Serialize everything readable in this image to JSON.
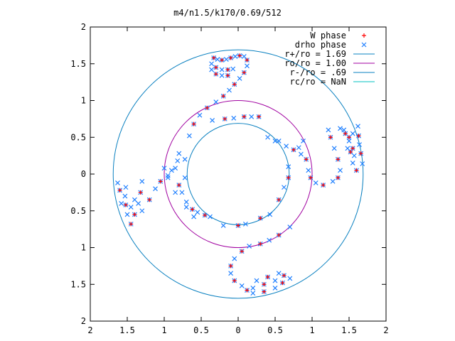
{
  "chart_data": {
    "type": "scatter",
    "title": "m4/n1.5/k170/0.69/512",
    "xlabel": "",
    "ylabel": "",
    "xlim": [
      -2,
      2
    ],
    "ylim": [
      -2,
      2
    ],
    "x_ticks": [
      {
        "value": -2,
        "label": "2"
      },
      {
        "value": -1.5,
        "label": "1.5"
      },
      {
        "value": -1,
        "label": "1"
      },
      {
        "value": -0.5,
        "label": "0.5"
      },
      {
        "value": 0,
        "label": "0"
      },
      {
        "value": 0.5,
        "label": "0.5"
      },
      {
        "value": 1,
        "label": "1"
      },
      {
        "value": 1.5,
        "label": "1.5"
      },
      {
        "value": 2,
        "label": "2"
      }
    ],
    "y_ticks": [
      {
        "value": 2,
        "label": "2"
      },
      {
        "value": 1.5,
        "label": "1.5"
      },
      {
        "value": 1,
        "label": "1"
      },
      {
        "value": 0.5,
        "label": "0.5"
      },
      {
        "value": 0,
        "label": "0"
      },
      {
        "value": -0.5,
        "label": "0.5"
      },
      {
        "value": -1,
        "label": "1"
      },
      {
        "value": -1.5,
        "label": "1.5"
      },
      {
        "value": -2,
        "label": "2"
      }
    ],
    "grid": false,
    "legend_position": "top-right",
    "legend": [
      {
        "label": "W phase",
        "kind": "points",
        "marker": "plus",
        "color": "#ff0000"
      },
      {
        "label": "drho phase",
        "kind": "points",
        "marker": "cross",
        "color": "#2080ff"
      },
      {
        "label": "r+/ro = 1.69",
        "kind": "line",
        "color": "#0a80c0"
      },
      {
        "label": "ro/ro = 1.00",
        "kind": "line",
        "color": "#a000a0"
      },
      {
        "label": "r-/ro = .69",
        "kind": "line",
        "color": "#0a80c0"
      },
      {
        "label": "rc/ro = NaN",
        "kind": "line",
        "color": "#00c0c0"
      }
    ],
    "circles": [
      {
        "name": "r+/ro = 1.69",
        "radius": 1.69,
        "color": "#0a80c0"
      },
      {
        "name": "ro/ro = 1.00",
        "radius": 1.0,
        "color": "#a000a0"
      },
      {
        "name": "r-/ro = .69",
        "radius": 0.69,
        "color": "#0a80c0"
      }
    ],
    "series": [
      {
        "name": "drho phase",
        "marker": "cross",
        "color": "#2080ff",
        "points": [
          [
            -0.33,
            1.58
          ],
          [
            -0.28,
            1.56
          ],
          [
            -0.22,
            1.55
          ],
          [
            -0.16,
            1.56
          ],
          [
            -0.1,
            1.58
          ],
          [
            -0.04,
            1.6
          ],
          [
            0.02,
            1.61
          ],
          [
            0.08,
            1.6
          ],
          [
            0.12,
            1.55
          ],
          [
            0.12,
            1.47
          ],
          [
            0.08,
            1.38
          ],
          [
            0.02,
            1.3
          ],
          [
            -0.05,
            1.22
          ],
          [
            -0.12,
            1.14
          ],
          [
            -0.2,
            1.06
          ],
          [
            -0.3,
            0.98
          ],
          [
            -0.42,
            0.9
          ],
          [
            -0.52,
            0.8
          ],
          [
            -0.6,
            0.68
          ],
          [
            -0.66,
            0.52
          ],
          [
            -0.36,
            1.5
          ],
          [
            -0.3,
            1.45
          ],
          [
            -0.22,
            1.42
          ],
          [
            -0.14,
            1.42
          ],
          [
            -0.07,
            1.43
          ],
          [
            -0.36,
            1.42
          ],
          [
            -0.3,
            1.36
          ],
          [
            -0.22,
            1.34
          ],
          [
            -0.14,
            1.34
          ],
          [
            -0.18,
            0.75
          ],
          [
            -0.35,
            0.73
          ],
          [
            -0.06,
            0.76
          ],
          [
            0.08,
            0.78
          ],
          [
            0.18,
            0.78
          ],
          [
            0.28,
            0.78
          ],
          [
            -0.85,
            0.08
          ],
          [
            -0.95,
            -0.02
          ],
          [
            -1.05,
            -0.1
          ],
          [
            -1.12,
            -0.2
          ],
          [
            -1.2,
            -0.35
          ],
          [
            -1.3,
            -0.5
          ],
          [
            -1.4,
            -0.55
          ],
          [
            -1.35,
            -0.4
          ],
          [
            -1.32,
            -0.25
          ],
          [
            -1.3,
            -0.1
          ],
          [
            -1.4,
            -0.35
          ],
          [
            -1.45,
            -0.45
          ],
          [
            -1.53,
            -0.3
          ],
          [
            -1.52,
            -0.42
          ],
          [
            -1.5,
            -0.55
          ],
          [
            -1.45,
            -0.68
          ],
          [
            -1.58,
            -0.4
          ],
          [
            -1.6,
            -0.22
          ],
          [
            -1.63,
            -0.12
          ],
          [
            -1.52,
            -0.18
          ],
          [
            -1.0,
            0.08
          ],
          [
            -0.9,
            0.05
          ],
          [
            -0.8,
            -0.15
          ],
          [
            -0.7,
            -0.38
          ],
          [
            -0.62,
            -0.48
          ],
          [
            -0.55,
            -0.52
          ],
          [
            -0.45,
            -0.56
          ],
          [
            -0.38,
            -0.58
          ],
          [
            -0.72,
            -0.05
          ],
          [
            -0.76,
            -0.25
          ],
          [
            -0.7,
            -0.45
          ],
          [
            -0.6,
            -0.58
          ],
          [
            0.12,
            -1.58
          ],
          [
            0.05,
            -1.52
          ],
          [
            -0.05,
            -1.45
          ],
          [
            -0.1,
            -1.35
          ],
          [
            -0.1,
            -1.25
          ],
          [
            -0.05,
            -1.15
          ],
          [
            0.05,
            -1.05
          ],
          [
            0.15,
            -0.98
          ],
          [
            0.3,
            -0.95
          ],
          [
            0.42,
            -0.9
          ],
          [
            0.55,
            -0.83
          ],
          [
            0.7,
            -0.72
          ],
          [
            0.2,
            -1.62
          ],
          [
            0.35,
            -1.6
          ],
          [
            0.5,
            -1.55
          ],
          [
            0.6,
            -1.48
          ],
          [
            0.7,
            -1.42
          ],
          [
            0.2,
            -1.55
          ],
          [
            0.35,
            -1.5
          ],
          [
            0.5,
            -1.45
          ],
          [
            0.62,
            -1.38
          ],
          [
            0.25,
            -1.45
          ],
          [
            0.4,
            -1.4
          ],
          [
            0.55,
            -1.35
          ],
          [
            0.0,
            -0.7
          ],
          [
            -0.2,
            -0.7
          ],
          [
            0.1,
            -0.68
          ],
          [
            0.3,
            -0.6
          ],
          [
            0.43,
            -0.55
          ],
          [
            0.55,
            -0.35
          ],
          [
            0.62,
            -0.18
          ],
          [
            0.68,
            -0.05
          ],
          [
            0.68,
            0.1
          ],
          [
            0.55,
            0.45
          ],
          [
            0.65,
            0.38
          ],
          [
            0.75,
            0.33
          ],
          [
            0.85,
            0.27
          ],
          [
            0.92,
            0.2
          ],
          [
            0.95,
            0.05
          ],
          [
            0.98,
            -0.05
          ],
          [
            1.05,
            -0.12
          ],
          [
            1.15,
            -0.15
          ],
          [
            1.28,
            -0.1
          ],
          [
            1.35,
            -0.05
          ],
          [
            1.38,
            0.05
          ],
          [
            1.35,
            0.2
          ],
          [
            1.3,
            0.35
          ],
          [
            1.25,
            0.5
          ],
          [
            1.22,
            0.6
          ],
          [
            1.38,
            0.62
          ],
          [
            1.45,
            0.55
          ],
          [
            1.5,
            0.45
          ],
          [
            1.55,
            0.35
          ],
          [
            1.57,
            0.25
          ],
          [
            1.48,
            0.35
          ],
          [
            1.5,
            0.5
          ],
          [
            1.43,
            0.6
          ],
          [
            1.62,
            0.65
          ],
          [
            1.63,
            0.52
          ],
          [
            1.64,
            0.4
          ],
          [
            1.66,
            0.28
          ],
          [
            1.68,
            0.14
          ],
          [
            1.6,
            0.05
          ],
          [
            1.55,
            0.15
          ],
          [
            1.52,
            0.3
          ],
          [
            1.55,
            0.55
          ],
          [
            0.4,
            0.5
          ],
          [
            0.5,
            0.45
          ],
          [
            0.82,
            0.36
          ],
          [
            0.88,
            0.45
          ],
          [
            -0.8,
            0.28
          ],
          [
            -0.82,
            0.18
          ],
          [
            -0.72,
            0.2
          ],
          [
            -0.95,
            -0.05
          ],
          [
            -0.85,
            -0.25
          ]
        ]
      },
      {
        "name": "W phase",
        "marker": "plus",
        "color": "#ff0000",
        "points": [
          [
            -0.33,
            1.58
          ],
          [
            -0.22,
            1.55
          ],
          [
            -0.1,
            1.58
          ],
          [
            0.02,
            1.61
          ],
          [
            0.12,
            1.55
          ],
          [
            0.08,
            1.38
          ],
          [
            -0.05,
            1.22
          ],
          [
            -0.2,
            1.06
          ],
          [
            -0.42,
            0.9
          ],
          [
            -0.6,
            0.68
          ],
          [
            -0.3,
            1.45
          ],
          [
            -0.14,
            1.42
          ],
          [
            -0.3,
            1.36
          ],
          [
            -0.14,
            1.34
          ],
          [
            -0.18,
            0.75
          ],
          [
            0.08,
            0.78
          ],
          [
            0.28,
            0.78
          ],
          [
            -1.05,
            -0.1
          ],
          [
            -1.2,
            -0.35
          ],
          [
            -1.4,
            -0.55
          ],
          [
            -1.32,
            -0.25
          ],
          [
            -1.52,
            -0.42
          ],
          [
            -1.45,
            -0.68
          ],
          [
            -1.6,
            -0.22
          ],
          [
            -0.8,
            -0.15
          ],
          [
            -0.62,
            -0.48
          ],
          [
            -0.45,
            -0.56
          ],
          [
            0.12,
            -1.58
          ],
          [
            -0.05,
            -1.45
          ],
          [
            -0.1,
            -1.25
          ],
          [
            0.05,
            -1.05
          ],
          [
            0.3,
            -0.95
          ],
          [
            0.55,
            -0.83
          ],
          [
            0.35,
            -1.6
          ],
          [
            0.6,
            -1.48
          ],
          [
            0.35,
            -1.5
          ],
          [
            0.62,
            -1.38
          ],
          [
            0.4,
            -1.4
          ],
          [
            0.0,
            -0.7
          ],
          [
            0.3,
            -0.6
          ],
          [
            0.55,
            -0.35
          ],
          [
            0.68,
            -0.05
          ],
          [
            0.75,
            0.33
          ],
          [
            0.92,
            0.2
          ],
          [
            0.98,
            -0.05
          ],
          [
            1.15,
            -0.15
          ],
          [
            1.35,
            -0.05
          ],
          [
            1.35,
            0.2
          ],
          [
            1.25,
            0.5
          ],
          [
            1.45,
            0.55
          ],
          [
            1.55,
            0.35
          ],
          [
            1.5,
            0.5
          ],
          [
            1.63,
            0.52
          ],
          [
            1.66,
            0.28
          ],
          [
            1.6,
            0.05
          ],
          [
            1.52,
            0.3
          ]
        ]
      }
    ]
  }
}
